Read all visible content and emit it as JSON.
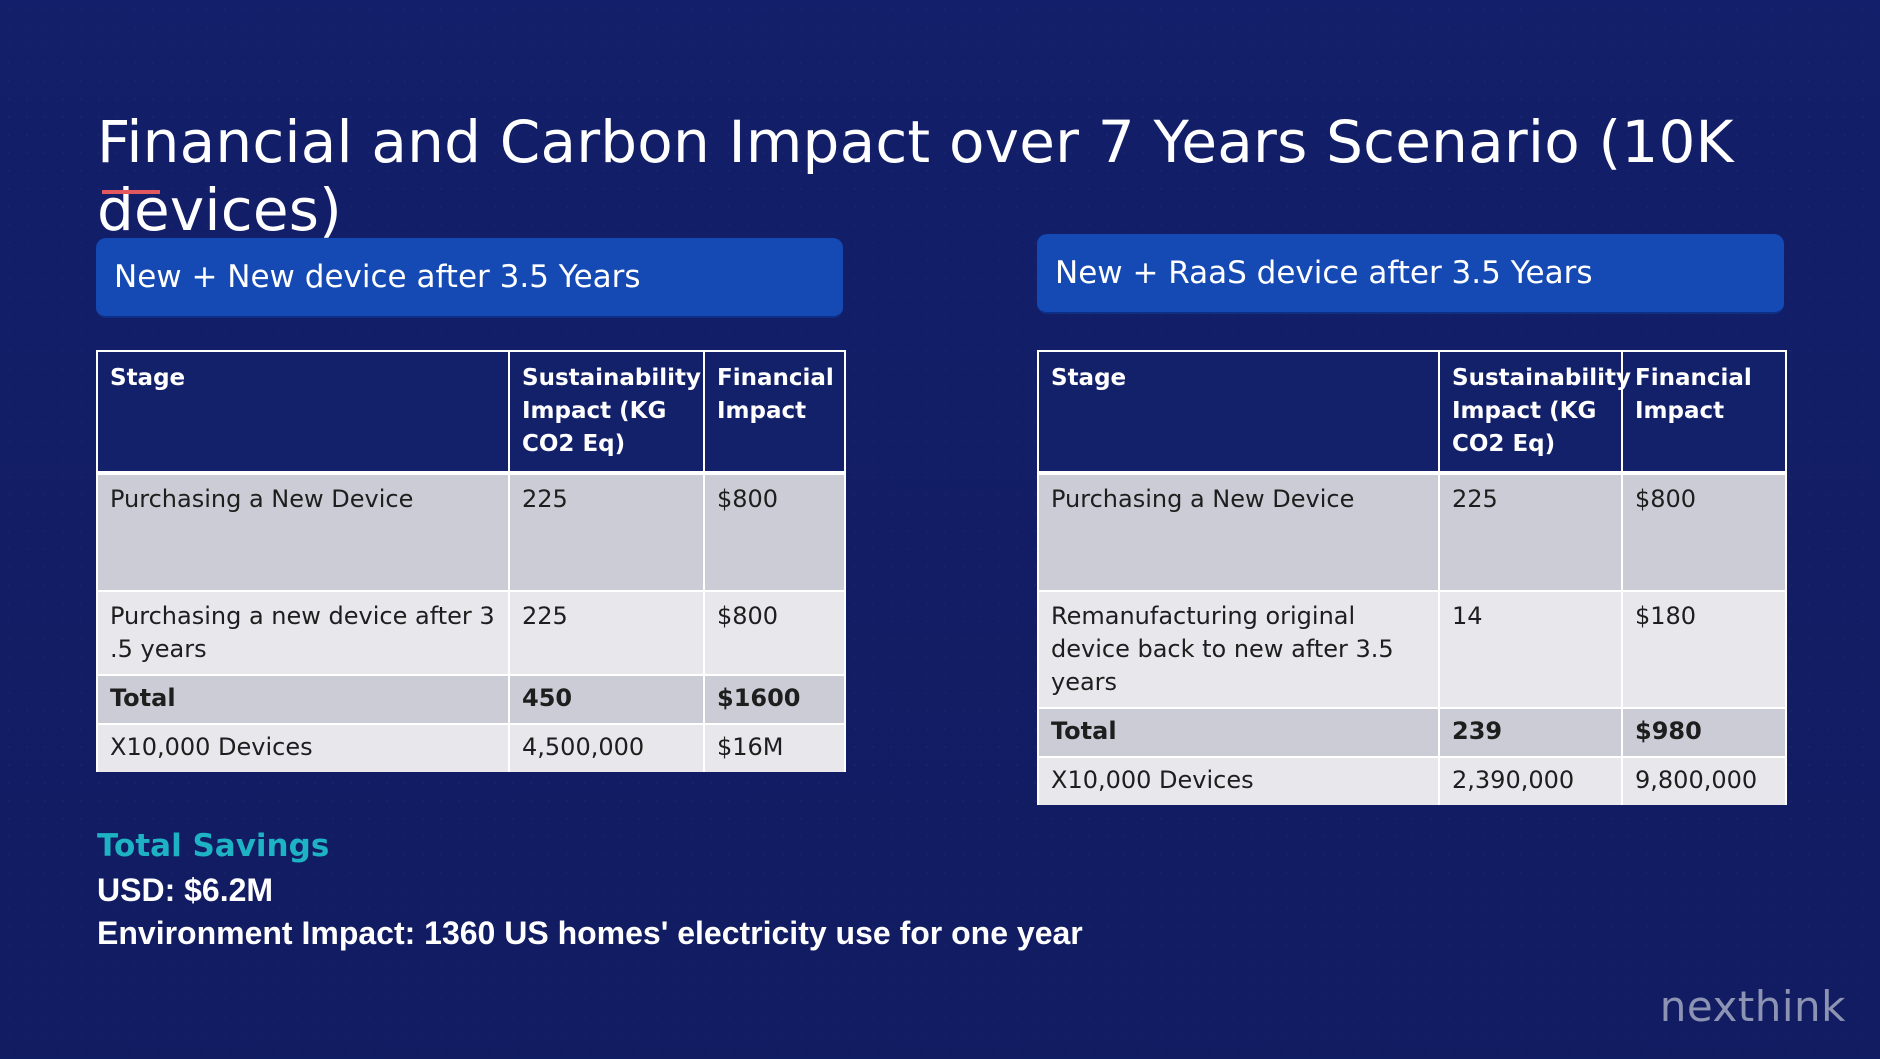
{
  "title": "Financial and Carbon Impact over 7 Years Scenario (10K devices)",
  "colors": {
    "background": "#14206a",
    "accent_line": "#e2585e",
    "panel_header": "#1549b4",
    "savings_heading": "#1eb3c4"
  },
  "left": {
    "header": "New + New device after 3.5 Years",
    "columns": [
      "Stage",
      "Sustainability Impact (KG CO2 Eq)",
      "Financial Impact"
    ],
    "rows": [
      [
        "Purchasing a New Device",
        "225",
        "$800"
      ],
      [
        "Purchasing a new device after 3 .5 years",
        "225",
        "$800"
      ],
      [
        "Total",
        "450",
        "$1600"
      ],
      [
        "X10,000 Devices",
        "4,500,000",
        "$16M"
      ]
    ]
  },
  "right": {
    "header": "New + RaaS device after 3.5 Years",
    "columns": [
      "Stage",
      "Sustainability Impact (KG CO2 Eq)",
      "Financial Impact"
    ],
    "rows": [
      [
        "Purchasing a New Device",
        "225",
        "$800"
      ],
      [
        "Remanufacturing original device back to new after 3.5 years",
        "14",
        "$180"
      ],
      [
        "Total",
        "239",
        "$980"
      ],
      [
        "X10,000 Devices",
        "2,390,000",
        "9,800,000"
      ]
    ]
  },
  "savings": {
    "heading": "Total Savings",
    "usd": "USD: $6.2M",
    "environment": "Environment Impact: 1360 US homes' electricity use for one year"
  },
  "logo": "nexthink"
}
